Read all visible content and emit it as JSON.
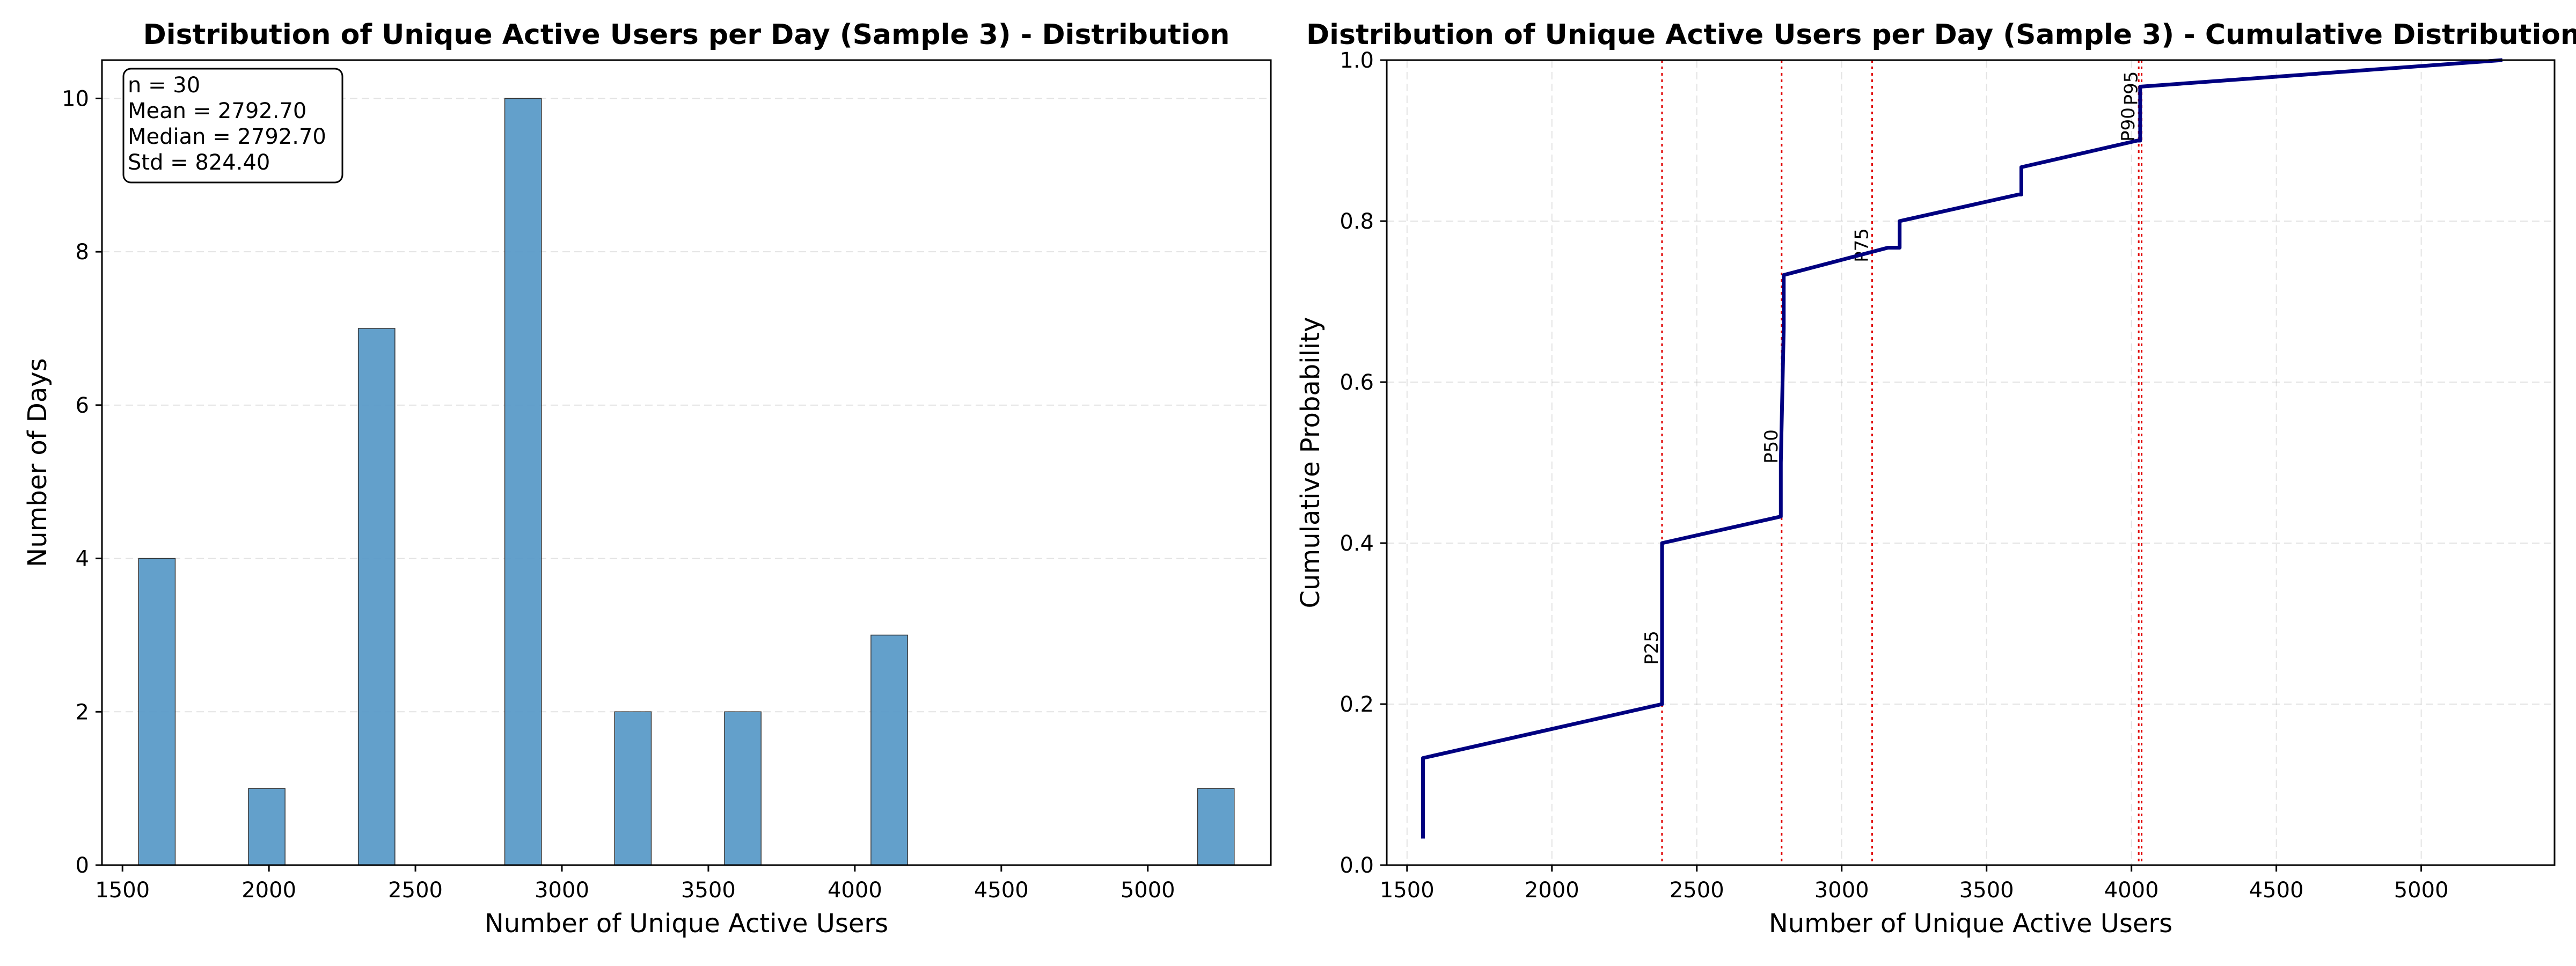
{
  "chart_data": [
    {
      "type": "bar",
      "title": "Distribution of Unique Active Users per Day (Sample 3) - Distribution",
      "xlabel": "Number of Unique Active Users",
      "ylabel": "Number of Days",
      "xlim": [
        1430,
        5420
      ],
      "ylim": [
        0,
        10.5
      ],
      "xticks": [
        1500,
        2000,
        2500,
        3000,
        3500,
        4000,
        4500,
        5000
      ],
      "yticks": [
        0,
        2,
        4,
        6,
        8,
        10
      ],
      "grid": "y",
      "bar_color": "#5b9bc9",
      "bins": [
        {
          "start": 1555,
          "end": 1680,
          "count": 4
        },
        {
          "start": 1930,
          "end": 2055,
          "count": 1
        },
        {
          "start": 2305,
          "end": 2430,
          "count": 7
        },
        {
          "start": 2805,
          "end": 2930,
          "count": 10
        },
        {
          "start": 3180,
          "end": 3305,
          "count": 2
        },
        {
          "start": 3555,
          "end": 3680,
          "count": 2
        },
        {
          "start": 4055,
          "end": 4180,
          "count": 3
        },
        {
          "start": 5170,
          "end": 5295,
          "count": 1
        }
      ],
      "stats_box": {
        "lines": [
          "n = 30",
          "Mean = 2792.70",
          "Median = 2792.70",
          "Std = 824.40"
        ],
        "placement": "top-left"
      }
    },
    {
      "type": "line",
      "title": "Distribution of Unique Active Users per Day (Sample 3) - Cumulative Distribution",
      "xlabel": "Number of Unique Active Users",
      "ylabel": "Cumulative Probability",
      "xlim": [
        1430,
        5460
      ],
      "ylim": [
        0,
        1.0
      ],
      "xticks": [
        1500,
        2000,
        2500,
        3000,
        3500,
        4000,
        4500,
        5000
      ],
      "yticks": [
        0.0,
        0.2,
        0.4,
        0.6,
        0.8,
        1.0
      ],
      "ytick_labels": [
        "0.0",
        "0.2",
        "0.4",
        "0.6",
        "0.8",
        "1.0"
      ],
      "grid": "both",
      "line_color": "#000080",
      "series": [
        {
          "x": [
            1555,
            1555,
            2380,
            2380,
            2790,
            2790,
            2800,
            2800,
            3160,
            3200,
            3200,
            3610,
            3620,
            3620,
            4020,
            4030,
            4030,
            5280
          ],
          "y": [
            0.033,
            0.133,
            0.2,
            0.4,
            0.433,
            0.5,
            0.667,
            0.733,
            0.767,
            0.767,
            0.8,
            0.833,
            0.833,
            0.867,
            0.9,
            0.9,
            0.967,
            1.0
          ]
        }
      ],
      "percentile_lines": [
        {
          "label": "P25",
          "x": 2380,
          "label_y": 0.27
        },
        {
          "label": "P50",
          "x": 2792.7,
          "label_y": 0.52
        },
        {
          "label": "P75",
          "x": 3105,
          "label_y": 0.77
        },
        {
          "label": "P90",
          "x": 4025,
          "label_y": 0.92
        },
        {
          "label": "P95",
          "x": 4035,
          "label_y": 0.965
        }
      ],
      "percentile_color": "#e00000"
    }
  ]
}
